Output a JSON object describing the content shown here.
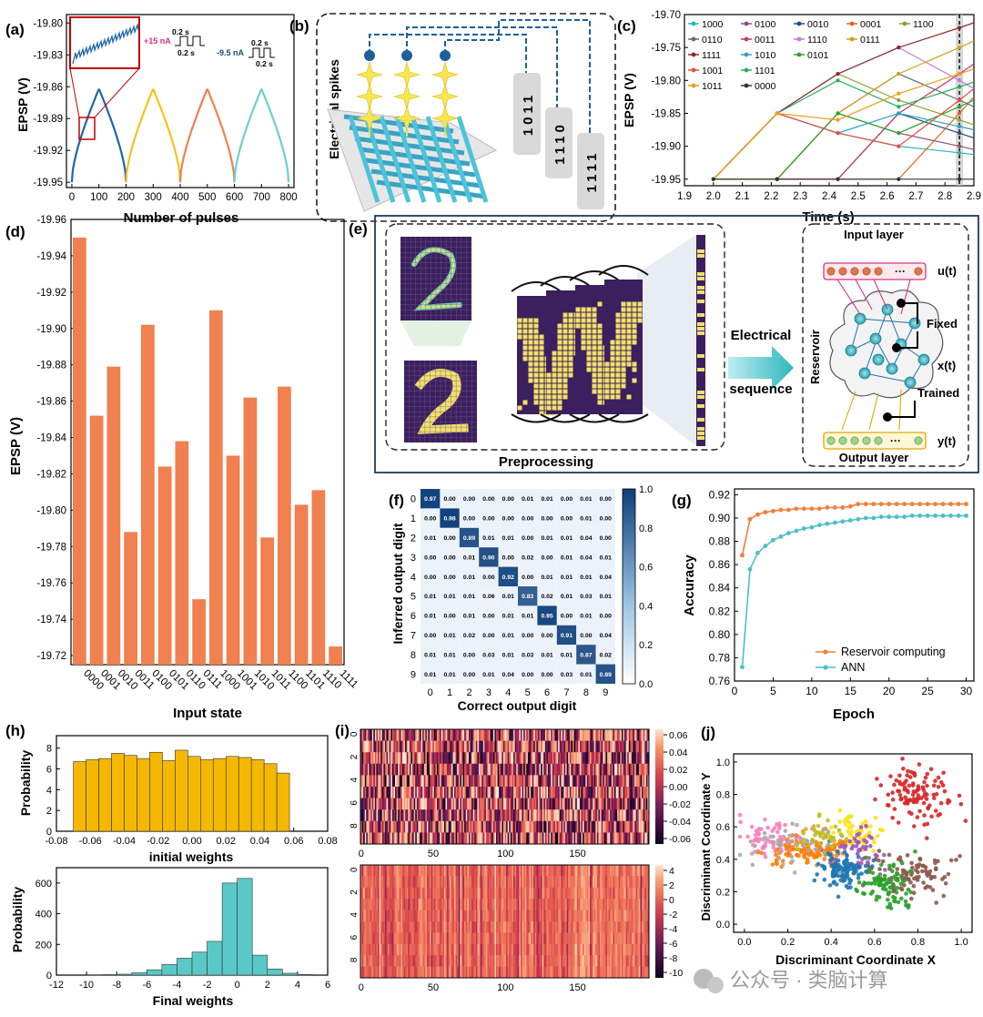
{
  "colors": {
    "orange": "#F08050",
    "teal": "#5BC8C8",
    "yellow": "#F5C21B",
    "blue_dark": "#2066A8",
    "navy": "#1F4E79",
    "magenta": "#D63384",
    "purple": "#4B2E83",
    "red": "#C00000"
  },
  "panels": {
    "a": "(a)",
    "b": "(b)",
    "c": "(c)",
    "d": "(d)",
    "e": "(e)",
    "f": "(f)",
    "g": "(g)",
    "h": "(h)",
    "i": "(i)",
    "j": "(j)"
  },
  "chart_a": {
    "type": "line",
    "xlabel": "Number of pulses",
    "ylabel": "EPSP (V)",
    "xlim": [
      -20,
      820
    ],
    "ylim": [
      -19.955,
      -19.792
    ],
    "xticks": [
      "0",
      "100",
      "200",
      "300",
      "400",
      "500",
      "600",
      "700",
      "800"
    ],
    "yticks": [
      "-19.80",
      "-19.83",
      "-19.86",
      "-19.89",
      "-19.92",
      "-19.95"
    ],
    "segments": [
      {
        "x0": 0,
        "x1": 100,
        "y0": -19.95,
        "y1": -19.862,
        "color": "#2066A8",
        "rising": true
      },
      {
        "x0": 100,
        "x1": 200,
        "y0": -19.862,
        "y1": -19.95,
        "color": "#2066A8",
        "rising": false
      },
      {
        "x0": 200,
        "x1": 300,
        "y0": -19.95,
        "y1": -19.862,
        "color": "#F5C21B",
        "rising": true
      },
      {
        "x0": 300,
        "x1": 400,
        "y0": -19.862,
        "y1": -19.95,
        "color": "#F5C21B",
        "rising": false
      },
      {
        "x0": 400,
        "x1": 500,
        "y0": -19.95,
        "y1": -19.862,
        "color": "#F08050",
        "rising": true
      },
      {
        "x0": 500,
        "x1": 600,
        "y0": -19.862,
        "y1": -19.95,
        "color": "#F08050",
        "rising": false
      },
      {
        "x0": 600,
        "x1": 700,
        "y0": -19.95,
        "y1": -19.862,
        "color": "#6ECFCF",
        "rising": true
      },
      {
        "x0": 700,
        "x1": 800,
        "y0": -19.862,
        "y1": -19.95,
        "color": "#6ECFCF",
        "rising": false
      }
    ],
    "pulse_pos": {
      "amp": "+15 nA",
      "width": "0.2 s",
      "gap": "0.2 s"
    },
    "pulse_neg": {
      "amp": "-9.5 nA",
      "width": "0.2 s",
      "gap": "0.2 s"
    }
  },
  "panel_b": {
    "spikes_label": "Electrical spikes",
    "codes": [
      "1011",
      "1110",
      "1111"
    ]
  },
  "chart_c": {
    "type": "line",
    "xlabel": "Time (s)",
    "ylabel": "EPSP (V)",
    "xlim": [
      1.9,
      2.9
    ],
    "ylim": [
      -19.96,
      -19.7
    ],
    "xticks": [
      "1.9",
      "2.0",
      "2.1",
      "2.2",
      "2.3",
      "2.4",
      "2.5",
      "2.6",
      "2.7",
      "2.8",
      "2.9"
    ],
    "yticks": [
      "-19.70",
      "-19.75",
      "-19.80",
      "-19.85",
      "-19.90",
      "-19.95"
    ],
    "highlight_x": 2.85,
    "times": [
      2.0,
      2.22,
      2.43,
      2.64,
      2.85
    ],
    "series": [
      {
        "name": "1000",
        "color": "#2BB5B5",
        "values": [
          -19.95,
          -19.85,
          -19.88,
          -19.9,
          -19.91
        ]
      },
      {
        "name": "0100",
        "color": "#8B4F7A",
        "values": [
          -19.95,
          -19.95,
          -19.85,
          -19.88,
          -19.9
        ]
      },
      {
        "name": "0010",
        "color": "#1F4E79",
        "values": [
          -19.95,
          -19.95,
          -19.95,
          -19.85,
          -19.88
        ]
      },
      {
        "name": "0001",
        "color": "#E8601C",
        "values": [
          -19.95,
          -19.95,
          -19.95,
          -19.95,
          -19.85
        ]
      },
      {
        "name": "1100",
        "color": "#8DA033",
        "values": [
          -19.95,
          -19.85,
          -19.79,
          -19.83,
          -19.86
        ]
      },
      {
        "name": "0110",
        "color": "#5A6A7A",
        "values": [
          -19.95,
          -19.95,
          -19.85,
          -19.79,
          -19.83
        ]
      },
      {
        "name": "0011",
        "color": "#C23B5A",
        "values": [
          -19.95,
          -19.95,
          -19.95,
          -19.85,
          -19.79
        ]
      },
      {
        "name": "1110",
        "color": "#C77CD4",
        "values": [
          -19.95,
          -19.85,
          -19.79,
          -19.75,
          -19.8
        ]
      },
      {
        "name": "0111",
        "color": "#D4A017",
        "values": [
          -19.95,
          -19.95,
          -19.85,
          -19.79,
          -19.75
        ]
      },
      {
        "name": "1111",
        "color": "#8A2A2A",
        "values": [
          -19.95,
          -19.85,
          -19.79,
          -19.75,
          -19.72
        ]
      },
      {
        "name": "1010",
        "color": "#2DA0C8",
        "values": [
          -19.95,
          -19.85,
          -19.88,
          -19.85,
          -19.87
        ]
      },
      {
        "name": "0101",
        "color": "#33A02C",
        "values": [
          -19.95,
          -19.95,
          -19.85,
          -19.88,
          -19.84
        ]
      },
      {
        "name": "1001",
        "color": "#E74C3C",
        "values": [
          -19.95,
          -19.85,
          -19.88,
          -19.9,
          -19.83
        ]
      },
      {
        "name": "1101",
        "color": "#27AE60",
        "values": [
          -19.95,
          -19.85,
          -19.8,
          -19.84,
          -19.81
        ]
      },
      {
        "name": "1011",
        "color": "#F39C12",
        "values": [
          -19.95,
          -19.85,
          -19.86,
          -19.82,
          -19.79
        ]
      },
      {
        "name": "0000",
        "color": "#333333",
        "values": [
          -19.95,
          -19.95,
          -19.95,
          -19.95,
          -19.95
        ]
      }
    ]
  },
  "chart_d": {
    "type": "bar",
    "xlabel": "Input state",
    "ylabel": "EPSP (V)",
    "ylim": [
      -19.715,
      -19.96
    ],
    "yticks": [
      "-19.96",
      "-19.94",
      "-19.92",
      "-19.90",
      "-19.88",
      "-19.86",
      "-19.84",
      "-19.82",
      "-19.80",
      "-19.78",
      "-19.76",
      "-19.74",
      "-19.72"
    ],
    "categories": [
      "0000",
      "0001",
      "0010",
      "0011",
      "0100",
      "0101",
      "0110",
      "0111",
      "1000",
      "1001",
      "1010",
      "1011",
      "1100",
      "1101",
      "1110",
      "1111"
    ],
    "values": [
      -19.95,
      -19.852,
      -19.879,
      -19.788,
      -19.902,
      -19.824,
      -19.838,
      -19.751,
      -19.91,
      -19.83,
      -19.862,
      -19.785,
      -19.868,
      -19.803,
      -19.811,
      -19.725
    ],
    "color": "#F08050"
  },
  "panel_e": {
    "preprocessing": "Preprocessing",
    "electrical": "Electrical",
    "sequence": "sequence",
    "input_layer": "Input layer",
    "output_layer": "Output layer",
    "reservoir": "Reservoir",
    "fixed": "Fixed",
    "trained": "Trained",
    "ut": "u(t)",
    "xt": "x(t)",
    "yt": "y(t)",
    "ellipsis": "···"
  },
  "chart_f": {
    "type": "heatmap",
    "xlabel": "Correct output digit",
    "ylabel": "Inferred output digit",
    "ticks": [
      "0",
      "1",
      "2",
      "3",
      "4",
      "5",
      "6",
      "7",
      "8",
      "9"
    ],
    "colorbar_ticks": [
      "0.0",
      "0.2",
      "0.4",
      "0.6",
      "0.8",
      "1.0"
    ],
    "matrix": [
      [
        "0.97",
        "0.00",
        "0.00",
        "0.00",
        "0.00",
        "0.01",
        "0.01",
        "0.00",
        "0.01",
        "0.00"
      ],
      [
        "0.00",
        "0.98",
        "0.00",
        "0.00",
        "0.00",
        "0.00",
        "0.00",
        "0.00",
        "0.01",
        "0.00"
      ],
      [
        "0.01",
        "0.00",
        "0.89",
        "0.01",
        "0.01",
        "0.00",
        "0.01",
        "0.01",
        "0.04",
        "0.00"
      ],
      [
        "0.00",
        "0.00",
        "0.01",
        "0.90",
        "0.00",
        "0.02",
        "0.00",
        "0.01",
        "0.04",
        "0.01"
      ],
      [
        "0.00",
        "0.00",
        "0.01",
        "0.00",
        "0.92",
        "0.00",
        "0.01",
        "0.01",
        "0.01",
        "0.04"
      ],
      [
        "0.01",
        "0.01",
        "0.01",
        "0.06",
        "0.01",
        "0.83",
        "0.02",
        "0.01",
        "0.03",
        "0.01"
      ],
      [
        "0.01",
        "0.00",
        "0.01",
        "0.00",
        "0.01",
        "0.01",
        "0.95",
        "0.00",
        "0.01",
        "0.00"
      ],
      [
        "0.00",
        "0.01",
        "0.02",
        "0.00",
        "0.01",
        "0.00",
        "0.00",
        "0.91",
        "0.00",
        "0.04"
      ],
      [
        "0.01",
        "0.01",
        "0.00",
        "0.03",
        "0.01",
        "0.03",
        "0.01",
        "0.01",
        "0.87",
        "0.02"
      ],
      [
        "0.01",
        "0.01",
        "0.00",
        "0.01",
        "0.04",
        "0.00",
        "0.00",
        "0.03",
        "0.01",
        "0.89"
      ]
    ]
  },
  "chart_g": {
    "type": "line",
    "xlabel": "Epoch",
    "ylabel": "Accuracy",
    "xlim": [
      0,
      31
    ],
    "ylim": [
      0.76,
      0.925
    ],
    "xticks": [
      "0",
      "5",
      "10",
      "15",
      "20",
      "25",
      "30"
    ],
    "yticks": [
      "0.76",
      "0.78",
      "0.80",
      "0.82",
      "0.84",
      "0.86",
      "0.88",
      "0.90",
      "0.92"
    ],
    "x": [
      1,
      2,
      3,
      4,
      5,
      6,
      7,
      8,
      9,
      10,
      11,
      12,
      13,
      14,
      15,
      16,
      17,
      18,
      19,
      20,
      21,
      22,
      23,
      24,
      25,
      26,
      27,
      28,
      29,
      30
    ],
    "series": [
      {
        "name": "Reservoir computing",
        "color": "#F07F3C",
        "values": [
          0.868,
          0.899,
          0.903,
          0.905,
          0.906,
          0.907,
          0.907,
          0.908,
          0.908,
          0.908,
          0.908,
          0.909,
          0.909,
          0.909,
          0.91,
          0.912,
          0.912,
          0.912,
          0.912,
          0.912,
          0.912,
          0.912,
          0.912,
          0.912,
          0.912,
          0.912,
          0.912,
          0.912,
          0.912,
          0.912
        ]
      },
      {
        "name": "ANN",
        "color": "#4FBFC4",
        "values": [
          0.772,
          0.856,
          0.87,
          0.876,
          0.881,
          0.884,
          0.887,
          0.889,
          0.891,
          0.892,
          0.894,
          0.895,
          0.896,
          0.897,
          0.898,
          0.899,
          0.9,
          0.9,
          0.901,
          0.901,
          0.901,
          0.901,
          0.902,
          0.902,
          0.902,
          0.902,
          0.902,
          0.902,
          0.902,
          0.902
        ]
      }
    ]
  },
  "chart_h1": {
    "type": "bar",
    "xlabel": "initial weights",
    "ylabel": "Probability",
    "xticks": [
      "-0.08",
      "-0.06",
      "-0.04",
      "-0.02",
      "0.00",
      "0.02",
      "0.04",
      "0.06",
      "0.08"
    ],
    "yticks": [
      "0",
      "2",
      "4",
      "6",
      "8"
    ],
    "bin_start": -0.07,
    "bin_width": 0.0075,
    "values": [
      6.7,
      6.9,
      7.0,
      7.5,
      7.3,
      7.0,
      7.6,
      6.8,
      7.8,
      7.2,
      6.9,
      7.0,
      7.2,
      7.1,
      6.9,
      6.5,
      5.6
    ],
    "color": "#F5B800"
  },
  "chart_h2": {
    "type": "bar",
    "xlabel": "Final weights",
    "ylabel": "Probability",
    "xticks": [
      "-12",
      "-10",
      "-8",
      "-6",
      "-4",
      "-2",
      "0",
      "2",
      "4",
      "6"
    ],
    "yticks": [
      "0",
      "200",
      "400",
      "600"
    ],
    "bin_start": -10,
    "bin_width": 1,
    "values": [
      2,
      3,
      6,
      15,
      35,
      70,
      110,
      150,
      220,
      600,
      630,
      130,
      40,
      12,
      4
    ],
    "color": "#5BC8C8"
  },
  "chart_i1": {
    "type": "heatmap",
    "rows": 10,
    "cols": 200,
    "xticks": [
      "0",
      "50",
      "100",
      "150"
    ],
    "yticks": [
      "0",
      "2",
      "4",
      "6",
      "8"
    ],
    "colorbar_ticks": [
      "0.06",
      "0.04",
      "0.02",
      "0.00",
      "-0.02",
      "-0.04",
      "-0.06"
    ]
  },
  "chart_i2": {
    "type": "heatmap",
    "rows": 10,
    "cols": 200,
    "xticks": [
      "0",
      "50",
      "100",
      "150"
    ],
    "yticks": [
      "0",
      "2",
      "4",
      "6",
      "8"
    ],
    "colorbar_ticks": [
      "4",
      "2",
      "0",
      "-2",
      "-4",
      "-6",
      "-8",
      "-10"
    ]
  },
  "chart_j": {
    "type": "scatter",
    "xlabel": "Discriminant Coordinate X",
    "ylabel": "Discriminant Coordinate Y",
    "xticks": [
      "0.0",
      "0.2",
      "0.4",
      "0.6",
      "0.8",
      "1.0"
    ],
    "yticks": [
      "0.0",
      "0.2",
      "0.4",
      "0.6",
      "0.8",
      "1.0"
    ],
    "clusters": [
      {
        "color": "#D62728",
        "cx": 0.8,
        "cy": 0.8,
        "sx": 0.08,
        "sy": 0.09,
        "n": 110
      },
      {
        "color": "#FFE119",
        "cx": 0.52,
        "cy": 0.57,
        "sx": 0.07,
        "sy": 0.06,
        "n": 60
      },
      {
        "color": "#9B59B6",
        "cx": 0.5,
        "cy": 0.45,
        "sx": 0.08,
        "sy": 0.06,
        "n": 60
      },
      {
        "color": "#F781BF",
        "cx": 0.12,
        "cy": 0.53,
        "sx": 0.07,
        "sy": 0.05,
        "n": 70
      },
      {
        "color": "#FF7F0E",
        "cx": 0.3,
        "cy": 0.45,
        "sx": 0.09,
        "sy": 0.05,
        "n": 110
      },
      {
        "color": "#8C564B",
        "cx": 0.78,
        "cy": 0.32,
        "sx": 0.09,
        "sy": 0.07,
        "n": 90
      },
      {
        "color": "#2CA02C",
        "cx": 0.66,
        "cy": 0.24,
        "sx": 0.07,
        "sy": 0.08,
        "n": 90
      },
      {
        "color": "#1F77B4",
        "cx": 0.45,
        "cy": 0.33,
        "sx": 0.05,
        "sy": 0.05,
        "n": 110
      },
      {
        "color": "#BCBD22",
        "cx": 0.35,
        "cy": 0.55,
        "sx": 0.06,
        "sy": 0.05,
        "n": 40
      },
      {
        "color": "#AAAAAA",
        "cx": 0.2,
        "cy": 0.5,
        "sx": 0.1,
        "sy": 0.06,
        "n": 40
      }
    ]
  },
  "watermark": "公众号 · 类脑计算"
}
